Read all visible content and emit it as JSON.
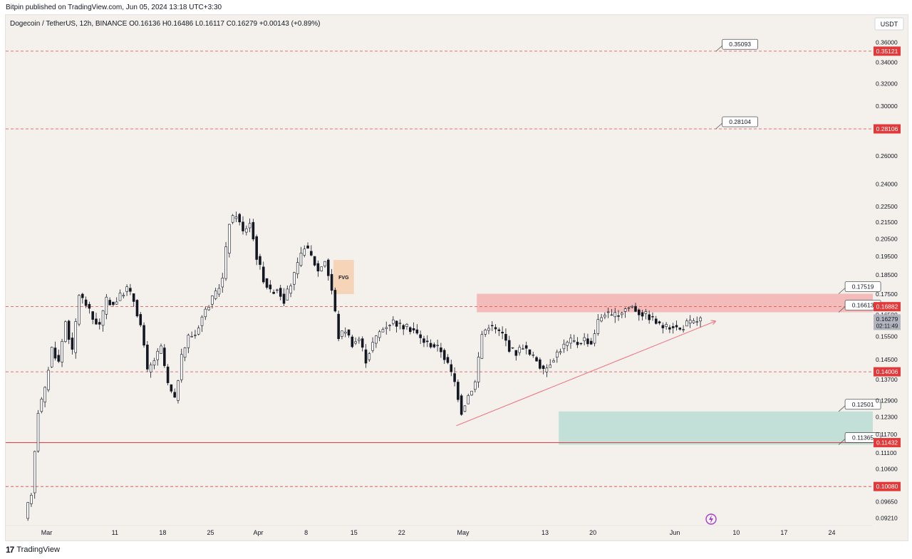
{
  "header": {
    "published": "Bitpin published on TradingView.com,  Jun 05, 2024 13:18 UTC+3:30",
    "symbol_line": "Dogecoin / TetherUS, 12h, BINANCE  O0.16136  H0.16486  L0.16117  C0.16279  +0.00143 (+0.89%)",
    "currency": "USDT"
  },
  "footer": {
    "brand": "TradingView",
    "logo_glyph": "17"
  },
  "colors": {
    "background": "#f4f0ec",
    "candle": "#131722",
    "level_line": "#e04848",
    "label_red": "#e23a3a",
    "resistance_zone": "#f2b3b3",
    "support_zone": "#b8ddd4",
    "fvg_box": "#f6d2b4",
    "trendline": "#f06a7a",
    "current_price_badge": "#b2b5be"
  },
  "chart_data": {
    "type": "candlestick",
    "symbol": "Dogecoin / TetherUS",
    "interval": "12h",
    "exchange": "BINANCE",
    "ohlc_last": {
      "open": 0.16136,
      "high": 0.16486,
      "low": 0.16117,
      "close": 0.16279,
      "change": 0.00143,
      "change_pct": 0.89
    },
    "y_scale": "log",
    "ylim": [
      0.0905,
      0.371
    ],
    "y_ticks": [
      "0.36000",
      "0.34000",
      "0.32000",
      "0.30000",
      "0.26000",
      "0.24000",
      "0.22500",
      "0.21500",
      "0.20500",
      "0.19500",
      "0.18500",
      "0.17500",
      "0.16500",
      "0.15500",
      "0.14500",
      "0.13700",
      "0.12900",
      "0.12300",
      "0.11700",
      "0.11100",
      "0.10600",
      "0.09650",
      "0.09210"
    ],
    "x_ticks": [
      {
        "date": "2024-03-01",
        "label": "Mar"
      },
      {
        "date": "2024-03-11",
        "label": "11"
      },
      {
        "date": "2024-03-18",
        "label": "18"
      },
      {
        "date": "2024-03-25",
        "label": "25"
      },
      {
        "date": "2024-04-01",
        "label": "Apr"
      },
      {
        "date": "2024-04-08",
        "label": "8"
      },
      {
        "date": "2024-04-15",
        "label": "15"
      },
      {
        "date": "2024-04-22",
        "label": "22"
      },
      {
        "date": "2024-05-01",
        "label": "May"
      },
      {
        "date": "2024-05-13",
        "label": "13"
      },
      {
        "date": "2024-05-20",
        "label": "20"
      },
      {
        "date": "2024-06-01",
        "label": "Jun"
      },
      {
        "date": "2024-06-10",
        "label": "10"
      },
      {
        "date": "2024-06-17",
        "label": "17"
      },
      {
        "date": "2024-06-24",
        "label": "24"
      }
    ],
    "xlim": [
      "2024-02-24",
      "2024-06-30"
    ],
    "price_path": [
      [
        "2024-02-27",
        0.092
      ],
      [
        "2024-02-28",
        0.099
      ],
      [
        "2024-02-29",
        0.125
      ],
      [
        "2024-03-01",
        0.133
      ],
      [
        "2024-03-02",
        0.15
      ],
      [
        "2024-03-03",
        0.144
      ],
      [
        "2024-03-04",
        0.162
      ],
      [
        "2024-03-05",
        0.148
      ],
      [
        "2024-03-06",
        0.175
      ],
      [
        "2024-03-07",
        0.17
      ],
      [
        "2024-03-08",
        0.163
      ],
      [
        "2024-03-09",
        0.16
      ],
      [
        "2024-03-10",
        0.172
      ],
      [
        "2024-03-11",
        0.17
      ],
      [
        "2024-03-12",
        0.174
      ],
      [
        "2024-03-13",
        0.178
      ],
      [
        "2024-03-14",
        0.172
      ],
      [
        "2024-03-15",
        0.16
      ],
      [
        "2024-03-16",
        0.14
      ],
      [
        "2024-03-17",
        0.145
      ],
      [
        "2024-03-18",
        0.15
      ],
      [
        "2024-03-19",
        0.135
      ],
      [
        "2024-03-20",
        0.129
      ],
      [
        "2024-03-21",
        0.146
      ],
      [
        "2024-03-22",
        0.155
      ],
      [
        "2024-03-23",
        0.156
      ],
      [
        "2024-03-24",
        0.164
      ],
      [
        "2024-03-25",
        0.17
      ],
      [
        "2024-03-26",
        0.175
      ],
      [
        "2024-03-27",
        0.183
      ],
      [
        "2024-03-28",
        0.215
      ],
      [
        "2024-03-29",
        0.22
      ],
      [
        "2024-03-30",
        0.209
      ],
      [
        "2024-03-31",
        0.215
      ],
      [
        "2024-04-01",
        0.195
      ],
      [
        "2024-04-02",
        0.183
      ],
      [
        "2024-04-03",
        0.176
      ],
      [
        "2024-04-04",
        0.178
      ],
      [
        "2024-04-05",
        0.172
      ],
      [
        "2024-04-06",
        0.18
      ],
      [
        "2024-04-07",
        0.19
      ],
      [
        "2024-04-08",
        0.201
      ],
      [
        "2024-04-09",
        0.195
      ],
      [
        "2024-04-10",
        0.187
      ],
      [
        "2024-04-11",
        0.193
      ],
      [
        "2024-04-12",
        0.177
      ],
      [
        "2024-04-13",
        0.155
      ],
      [
        "2024-04-14",
        0.158
      ],
      [
        "2024-04-15",
        0.152
      ],
      [
        "2024-04-16",
        0.154
      ],
      [
        "2024-04-17",
        0.145
      ],
      [
        "2024-04-18",
        0.152
      ],
      [
        "2024-04-19",
        0.157
      ],
      [
        "2024-04-20",
        0.16
      ],
      [
        "2024-04-21",
        0.162
      ],
      [
        "2024-04-22",
        0.16
      ],
      [
        "2024-04-23",
        0.159
      ],
      [
        "2024-04-24",
        0.158
      ],
      [
        "2024-04-25",
        0.154
      ],
      [
        "2024-04-26",
        0.152
      ],
      [
        "2024-04-27",
        0.151
      ],
      [
        "2024-04-28",
        0.149
      ],
      [
        "2024-04-29",
        0.143
      ],
      [
        "2024-04-30",
        0.136
      ],
      [
        "2024-05-01",
        0.125
      ],
      [
        "2024-05-02",
        0.131
      ],
      [
        "2024-05-03",
        0.136
      ],
      [
        "2024-05-04",
        0.156
      ],
      [
        "2024-05-05",
        0.16
      ],
      [
        "2024-05-06",
        0.158
      ],
      [
        "2024-05-07",
        0.156
      ],
      [
        "2024-05-08",
        0.15
      ],
      [
        "2024-05-09",
        0.148
      ],
      [
        "2024-05-10",
        0.151
      ],
      [
        "2024-05-11",
        0.147
      ],
      [
        "2024-05-12",
        0.145
      ],
      [
        "2024-05-13",
        0.14
      ],
      [
        "2024-05-14",
        0.144
      ],
      [
        "2024-05-15",
        0.148
      ],
      [
        "2024-05-16",
        0.151
      ],
      [
        "2024-05-17",
        0.153
      ],
      [
        "2024-05-18",
        0.152
      ],
      [
        "2024-05-19",
        0.154
      ],
      [
        "2024-05-20",
        0.152
      ],
      [
        "2024-05-21",
        0.162
      ],
      [
        "2024-05-22",
        0.166
      ],
      [
        "2024-05-23",
        0.164
      ],
      [
        "2024-05-24",
        0.165
      ],
      [
        "2024-05-25",
        0.168
      ],
      [
        "2024-05-26",
        0.169
      ],
      [
        "2024-05-27",
        0.166
      ],
      [
        "2024-05-28",
        0.165
      ],
      [
        "2024-05-29",
        0.163
      ],
      [
        "2024-05-30",
        0.16
      ],
      [
        "2024-05-31",
        0.159
      ],
      [
        "2024-06-01",
        0.16
      ],
      [
        "2024-06-02",
        0.158
      ],
      [
        "2024-06-03",
        0.161
      ],
      [
        "2024-06-04",
        0.1614
      ],
      [
        "2024-06-05",
        0.1628
      ]
    ],
    "horizontal_levels": [
      {
        "price": 0.35121,
        "label": "0.35121",
        "style": "dashed"
      },
      {
        "price": 0.28106,
        "label": "0.28106",
        "style": "dashed"
      },
      {
        "price": 0.16882,
        "label": "0.16882",
        "style": "dashed"
      },
      {
        "price": 0.14006,
        "label": "0.14006",
        "style": "dashed"
      },
      {
        "price": 0.11432,
        "label": "0.11432",
        "style": "solid"
      },
      {
        "price": 0.1008,
        "label": "0.10080",
        "style": "dashed"
      }
    ],
    "price_callouts": [
      {
        "price": 0.35093,
        "label": "0.35093",
        "anchor_date": "2024-06-07"
      },
      {
        "price": 0.28104,
        "label": "0.28104",
        "anchor_date": "2024-06-07"
      },
      {
        "price": 0.17519,
        "label": "0.17519",
        "anchor_date": "2024-06-25"
      },
      {
        "price": 0.16613,
        "label": "0.16613",
        "anchor_date": "2024-06-25"
      },
      {
        "price": 0.12501,
        "label": "0.12501",
        "anchor_date": "2024-06-25"
      },
      {
        "price": 0.11365,
        "label": "0.11365",
        "anchor_date": "2024-06-25"
      }
    ],
    "zones": [
      {
        "name": "resistance",
        "from": "2024-05-03",
        "to": "2024-06-30",
        "low": 0.16613,
        "high": 0.17519
      },
      {
        "name": "support",
        "from": "2024-05-15",
        "to": "2024-06-30",
        "low": 0.11365,
        "high": 0.12501
      },
      {
        "name": "fvg",
        "from": "2024-04-12",
        "to": "2024-04-15",
        "low": 0.175,
        "high": 0.193,
        "label": "FVG"
      }
    ],
    "trendline": {
      "from": [
        "2024-04-30",
        0.12
      ],
      "to": [
        "2024-06-07",
        0.162
      ]
    },
    "current_price": {
      "price": 0.16279,
      "label": "0.16279",
      "countdown": "02:11:49"
    }
  }
}
